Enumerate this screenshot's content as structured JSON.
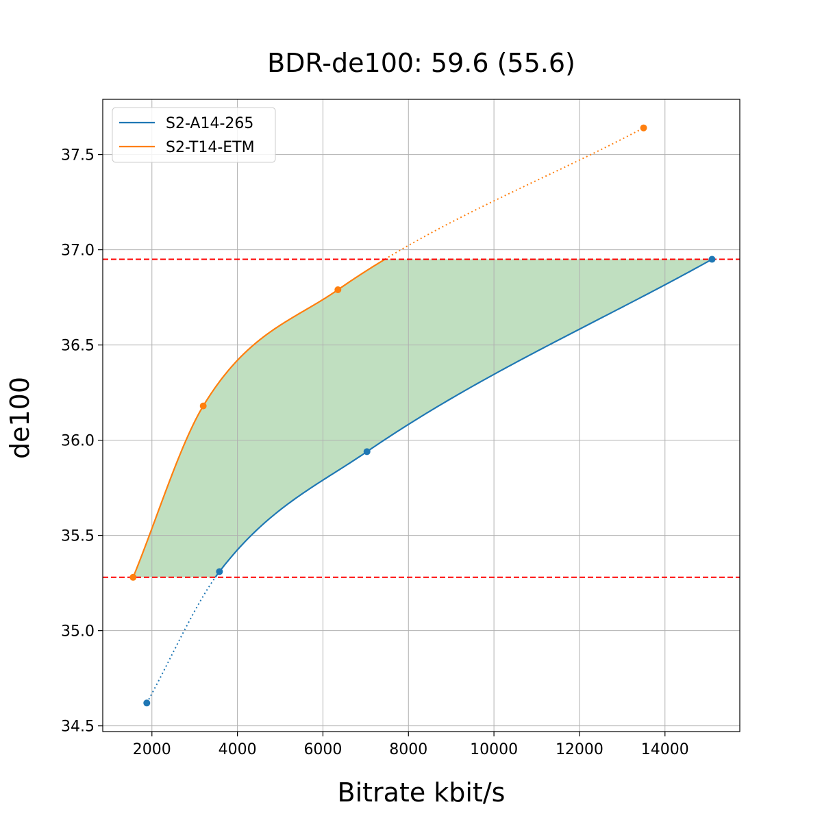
{
  "chart_data": {
    "type": "line",
    "title": "BDR-de100: 59.6 (55.6)",
    "xlabel": "Bitrate kbit/s",
    "ylabel": "de100",
    "xlim": [
      850,
      15750
    ],
    "ylim": [
      34.47,
      37.79
    ],
    "xticks": [
      2000,
      4000,
      6000,
      8000,
      10000,
      12000,
      14000
    ],
    "yticks": [
      34.5,
      35.0,
      35.5,
      36.0,
      36.5,
      37.0,
      37.5
    ],
    "grid": true,
    "legend_position": "top-left",
    "series": [
      {
        "name": "S2-A14-265",
        "color": "#1f77b4",
        "points": [
          [
            1880,
            34.62
          ],
          [
            3580,
            35.31
          ],
          [
            7030,
            35.94
          ],
          [
            15100,
            36.95
          ]
        ]
      },
      {
        "name": "S2-T14-ETM",
        "color": "#ff7f0e",
        "points": [
          [
            1560,
            35.28
          ],
          [
            3200,
            36.18
          ],
          [
            6350,
            36.79
          ],
          [
            13500,
            37.64
          ]
        ]
      }
    ],
    "reference_lines": {
      "orientation": "horizontal",
      "style": "dashed",
      "color": "#ff0000",
      "values": [
        35.28,
        36.95
      ]
    },
    "fill_between": {
      "color": "#c0dfc0",
      "y_range": [
        35.28,
        36.95
      ]
    }
  }
}
